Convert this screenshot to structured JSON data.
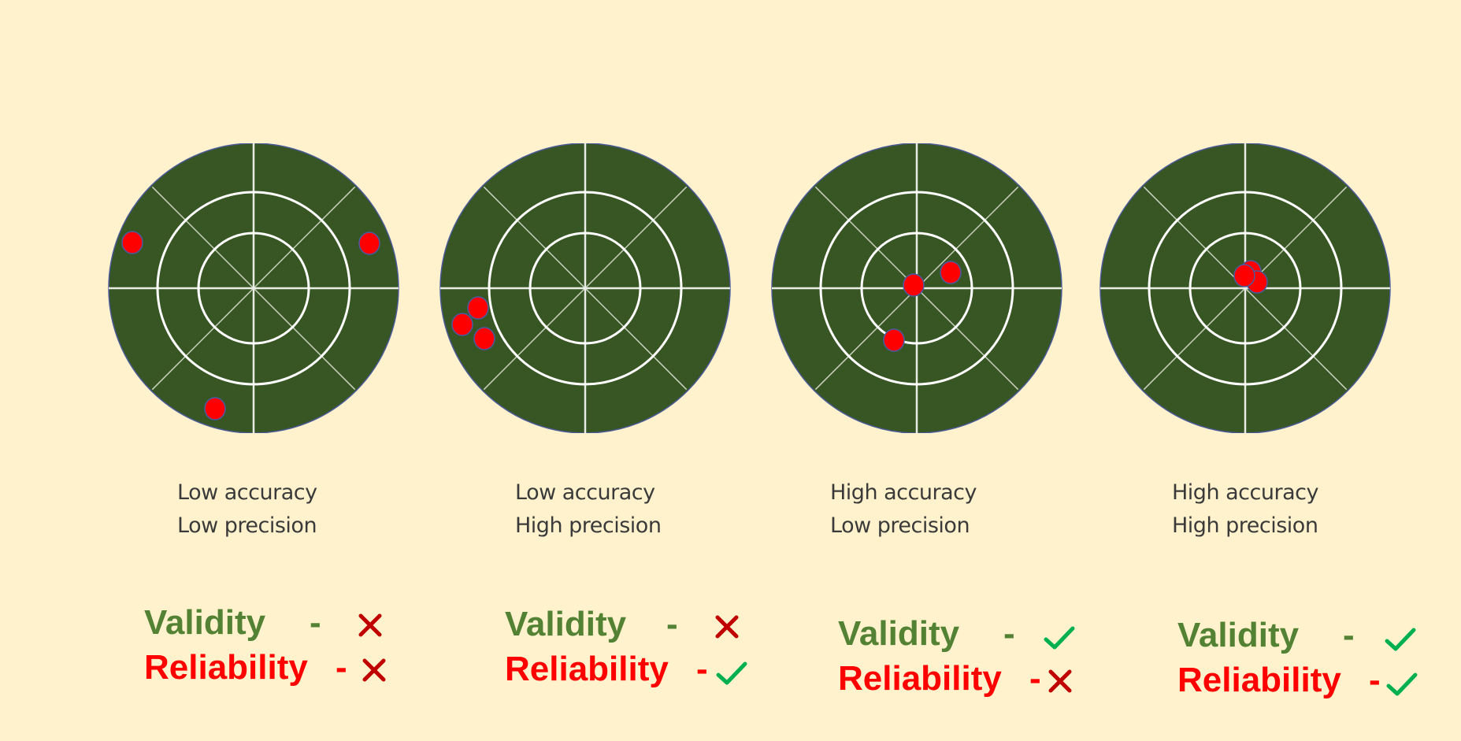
{
  "colors": {
    "background": "#fff2cc",
    "target_fill": "#375623",
    "target_lines": "#ffffff",
    "dot": "#ff0000",
    "validity_text": "#548235",
    "reliability_text": "#ff0000",
    "check": "#00b050",
    "cross": "#c00000"
  },
  "panels": [
    {
      "caption": [
        "Low accuracy",
        "Low precision"
      ],
      "validity_label": "Validity",
      "validity_dash": "-",
      "validity_icon": "cross-icon",
      "reliability_label": "Reliability",
      "reliability_dash": "-",
      "reliability_icon": "cross-icon"
    },
    {
      "caption": [
        "Low accuracy",
        "High precision"
      ],
      "validity_label": "Validity",
      "validity_dash": "-",
      "validity_icon": "cross-icon",
      "reliability_label": "Reliability",
      "reliability_dash": "-",
      "reliability_icon": "check-icon"
    },
    {
      "caption": [
        "High accuracy",
        "Low precision"
      ],
      "validity_label": "Validity",
      "validity_dash": "-",
      "validity_icon": "check-icon",
      "reliability_label": "Reliability",
      "reliability_dash": "-",
      "reliability_icon": "cross-icon"
    },
    {
      "caption": [
        "High accuracy",
        "High precision"
      ],
      "validity_label": "Validity",
      "validity_dash": "-",
      "validity_icon": "check-icon",
      "reliability_label": "Reliability",
      "reliability_dash": "-",
      "reliability_icon": "check-icon"
    }
  ]
}
